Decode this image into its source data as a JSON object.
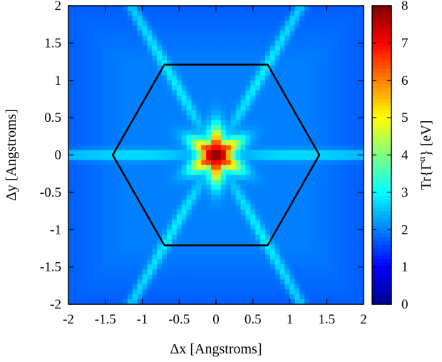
{
  "chart_data": {
    "type": "heatmap",
    "title": "",
    "xlabel": "Δx [Angstroms]",
    "ylabel": "Δy [Angstroms]",
    "xlim": [
      -2,
      2
    ],
    "ylim": [
      -2,
      2
    ],
    "x_ticks": [
      "-2",
      "-1.5",
      "-1",
      "-0.5",
      "0",
      "0.5",
      "1",
      "1.5",
      "2"
    ],
    "y_ticks": [
      "-2",
      "-1.5",
      "-1",
      "-0.5",
      "0",
      "0.5",
      "1",
      "1.5",
      "2"
    ],
    "colorbar": {
      "label_prefix": "Tr{Γ",
      "label_sup": "α",
      "label_suffix": "} [eV]",
      "range": [
        0,
        8
      ],
      "ticks": [
        "0",
        "1",
        "2",
        "3",
        "4",
        "5",
        "6",
        "7",
        "8"
      ],
      "colormap": [
        "#00008f",
        "#0000ff",
        "#0080ff",
        "#00ffff",
        "#80ff80",
        "#ffff00",
        "#ff8000",
        "#ff0000",
        "#800000"
      ]
    },
    "field": {
      "peak": {
        "x": 0,
        "y": 0,
        "value": 8
      },
      "background_value": 2.0,
      "ridge_angles_deg": [
        0,
        60,
        120
      ],
      "ridge_value": 2.9
    },
    "overlay": {
      "shape": "hexagon",
      "color": "#000000",
      "vertices": [
        [
          -1.4,
          0
        ],
        [
          -0.7,
          1.21
        ],
        [
          0.7,
          1.21
        ],
        [
          1.4,
          0
        ],
        [
          0.7,
          -1.21
        ],
        [
          -0.7,
          -1.21
        ]
      ]
    }
  }
}
